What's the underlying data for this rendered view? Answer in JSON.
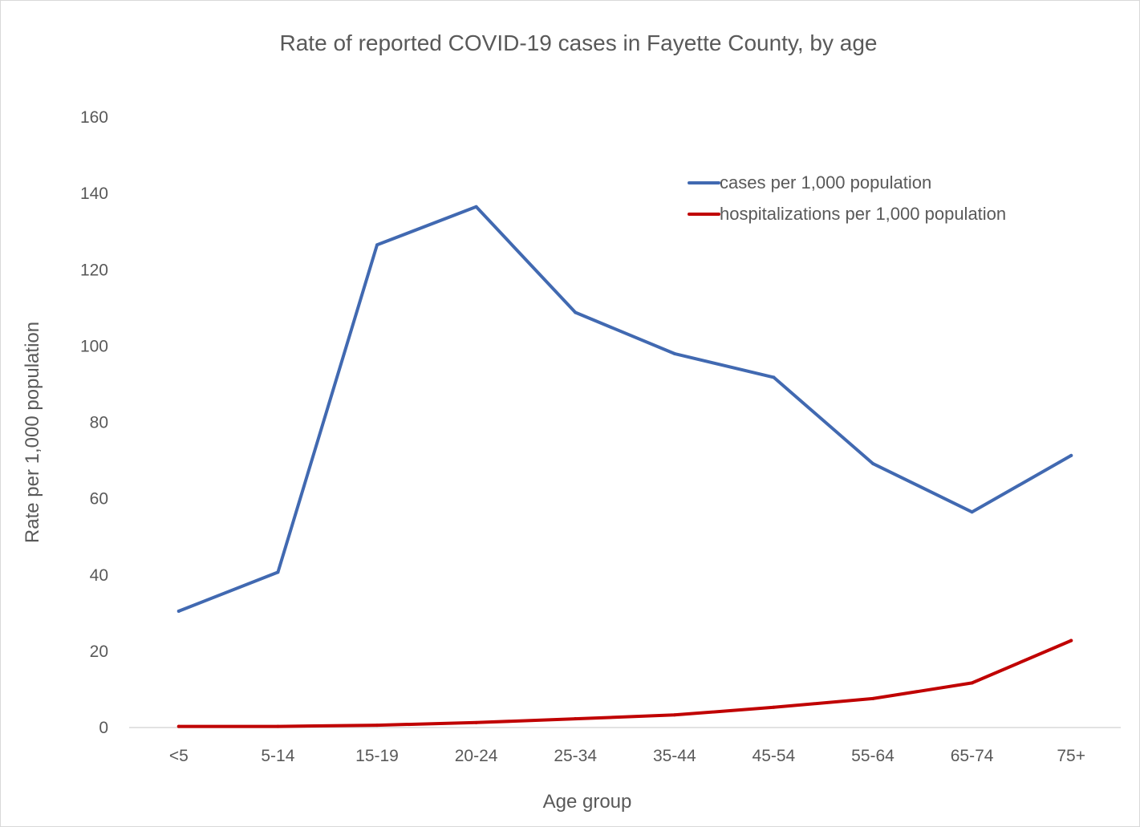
{
  "chart_data": {
    "type": "line",
    "title": "Rate of reported COVID-19 cases in Fayette County, by age",
    "xlabel": "Age group",
    "ylabel": "Rate per 1,000 population",
    "categories": [
      "<5",
      "5-14",
      "15-19",
      "20-24",
      "25-34",
      "35-44",
      "45-54",
      "55-64",
      "65-74",
      "75+"
    ],
    "ylim": [
      0,
      160
    ],
    "yticks": [
      0,
      20,
      40,
      60,
      80,
      100,
      120,
      140,
      160
    ],
    "grid": false,
    "legend_position": "top-right",
    "series": [
      {
        "name": "cases per 1,000 population",
        "color": "#4169b1",
        "values": [
          30.5,
          40.7,
          126.5,
          136.5,
          108.8,
          98.0,
          91.8,
          69.2,
          56.5,
          71.3
        ]
      },
      {
        "name": "hospitalizations per 1,000 population",
        "color": "#c00000",
        "values": [
          0.3,
          0.3,
          0.6,
          1.3,
          2.3,
          3.3,
          5.3,
          7.6,
          11.7,
          22.8
        ]
      }
    ]
  }
}
